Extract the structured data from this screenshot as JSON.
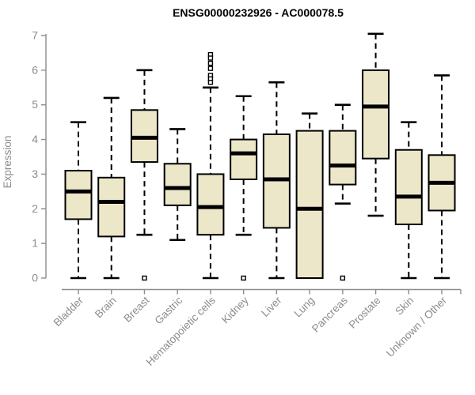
{
  "page": {
    "background": "#ffffff"
  },
  "chart_data": {
    "type": "boxplot",
    "title": "ENSG00000232926 - AC000078.5",
    "xlabel": "",
    "ylabel": "Expression",
    "ylim": [
      0,
      7
    ],
    "yticks": [
      0,
      1,
      2,
      3,
      4,
      5,
      6,
      7
    ],
    "grid": false,
    "legend": "none",
    "colors": {
      "box_fill": "#EDE7CA",
      "box_border": "#000000",
      "median": "#000000",
      "whisker": "#000000",
      "axis": "#8C8C8C",
      "tick_label": "#8C8C8C",
      "title": "#000000"
    },
    "categories": [
      "Bladder",
      "Brain",
      "Breast",
      "Gastric",
      "Hematopoietic cells",
      "Kidney",
      "Liver",
      "Lung",
      "Pancreas",
      "Prostate",
      "Skin",
      "Unknown / Other"
    ],
    "series": [
      {
        "name": "Bladder",
        "whisker_low": 0,
        "q1": 1.7,
        "median": 2.5,
        "q3": 3.1,
        "whisker_high": 4.5,
        "outliers": []
      },
      {
        "name": "Brain",
        "whisker_low": 0,
        "q1": 1.2,
        "median": 2.2,
        "q3": 2.9,
        "whisker_high": 5.2,
        "outliers": []
      },
      {
        "name": "Breast",
        "whisker_low": 1.25,
        "q1": 3.35,
        "median": 4.05,
        "q3": 4.85,
        "whisker_high": 6.0,
        "outliers": [
          0
        ]
      },
      {
        "name": "Gastric",
        "whisker_low": 1.1,
        "q1": 2.1,
        "median": 2.6,
        "q3": 3.3,
        "whisker_high": 4.3,
        "outliers": []
      },
      {
        "name": "Hematopoietic cells",
        "whisker_low": 0,
        "q1": 1.25,
        "median": 2.05,
        "q3": 3.0,
        "whisker_high": 5.5,
        "outliers": [
          6.45,
          6.35,
          6.2,
          6.05,
          5.85,
          5.75,
          5.65
        ]
      },
      {
        "name": "Kidney",
        "whisker_low": 1.25,
        "q1": 2.85,
        "median": 3.6,
        "q3": 4.0,
        "whisker_high": 5.25,
        "outliers": [
          0
        ]
      },
      {
        "name": "Liver",
        "whisker_low": 0,
        "q1": 1.45,
        "median": 2.85,
        "q3": 4.15,
        "whisker_high": 5.65,
        "outliers": []
      },
      {
        "name": "Lung",
        "whisker_low": 0,
        "q1": 0,
        "median": 2.0,
        "q3": 4.25,
        "whisker_high": 4.75,
        "outliers": []
      },
      {
        "name": "Pancreas",
        "whisker_low": 2.15,
        "q1": 2.7,
        "median": 3.25,
        "q3": 4.25,
        "whisker_high": 5.0,
        "outliers": [
          0
        ]
      },
      {
        "name": "Prostate",
        "whisker_low": 1.8,
        "q1": 3.45,
        "median": 4.95,
        "q3": 6.0,
        "whisker_high": 7.05,
        "outliers": []
      },
      {
        "name": "Skin",
        "whisker_low": 0,
        "q1": 1.55,
        "median": 2.35,
        "q3": 3.7,
        "whisker_high": 4.5,
        "outliers": []
      },
      {
        "name": "Unknown / Other",
        "whisker_low": 0,
        "q1": 1.95,
        "median": 2.75,
        "q3": 3.55,
        "whisker_high": 5.85,
        "outliers": []
      }
    ]
  }
}
